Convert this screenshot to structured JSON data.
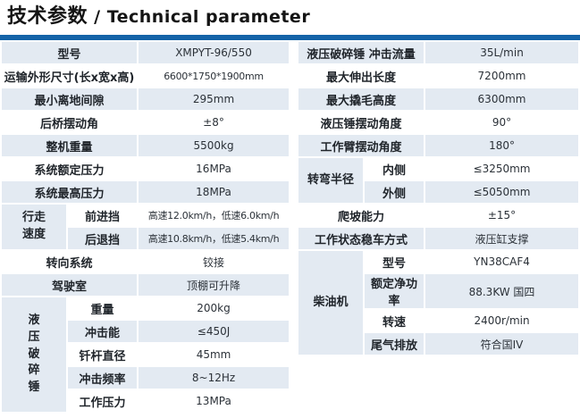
{
  "title": {
    "zh": "技术参数",
    "sep": " / ",
    "en": "Technical parameter"
  },
  "colors": {
    "accent_bar": "#1463a8",
    "row_light": "#e3eaf2",
    "row_white": "#ffffff",
    "text": "#24292f"
  },
  "left_table": {
    "rows": [
      {
        "label": "型号",
        "value": "XMPYT-96/550"
      },
      {
        "label": "运输外形尺寸(长x宽x高)",
        "value": "6600*1750*1900mm"
      },
      {
        "label": "最小离地间隙",
        "value": "295mm"
      },
      {
        "label": "后桥摆动角",
        "value": "±8°"
      },
      {
        "label": "整机重量",
        "value": "5500kg"
      },
      {
        "label": "系统额定压力",
        "value": "16MPa"
      },
      {
        "label": "系统最高压力",
        "value": "18MPa"
      },
      {
        "group": "行走\n速度",
        "items": [
          {
            "label": "前进挡",
            "value": "高速12.0km/h，低速6.0km/h"
          },
          {
            "label": "后退挡",
            "value": "高速10.8km/h，低速5.4km/h"
          }
        ]
      },
      {
        "label": "转向系统",
        "value": "铰接"
      },
      {
        "label": "驾驶室",
        "value": "顶棚可升降"
      },
      {
        "group": "液\n压\n破\n碎\n锤",
        "items": [
          {
            "label": "重量",
            "value": "200kg"
          },
          {
            "label": "冲击能",
            "value": "≤450J"
          },
          {
            "label": "钎杆直径",
            "value": "45mm"
          },
          {
            "label": "冲击频率",
            "value": "8~12Hz"
          },
          {
            "label": "工作压力",
            "value": "13MPa"
          }
        ]
      }
    ]
  },
  "right_table": {
    "rows": [
      {
        "label": "液压破碎锤 冲击流量",
        "value": "35L/min"
      },
      {
        "label": "最大伸出长度",
        "value": "7200mm"
      },
      {
        "label": "最大撬毛高度",
        "value": "6300mm"
      },
      {
        "label": "液压锤摆动角度",
        "value": "90°"
      },
      {
        "label": "工作臂摆动角度",
        "value": "180°"
      },
      {
        "group": "转弯半径",
        "items": [
          {
            "label": "内侧",
            "value": "≤3250mm"
          },
          {
            "label": "外侧",
            "value": "≤5050mm"
          }
        ]
      },
      {
        "label": "爬坡能力",
        "value": "±15°"
      },
      {
        "label": "工作状态稳车方式",
        "value": "液压缸支撑"
      },
      {
        "group": "柴油机",
        "items": [
          {
            "label": "型号",
            "value": "YN38CAF4"
          },
          {
            "label": "额定净功率",
            "value": "88.3KW 国四"
          },
          {
            "label": "转速",
            "value": "2400r/min"
          },
          {
            "label": "尾气排放",
            "value": "符合国IV"
          }
        ]
      }
    ]
  }
}
